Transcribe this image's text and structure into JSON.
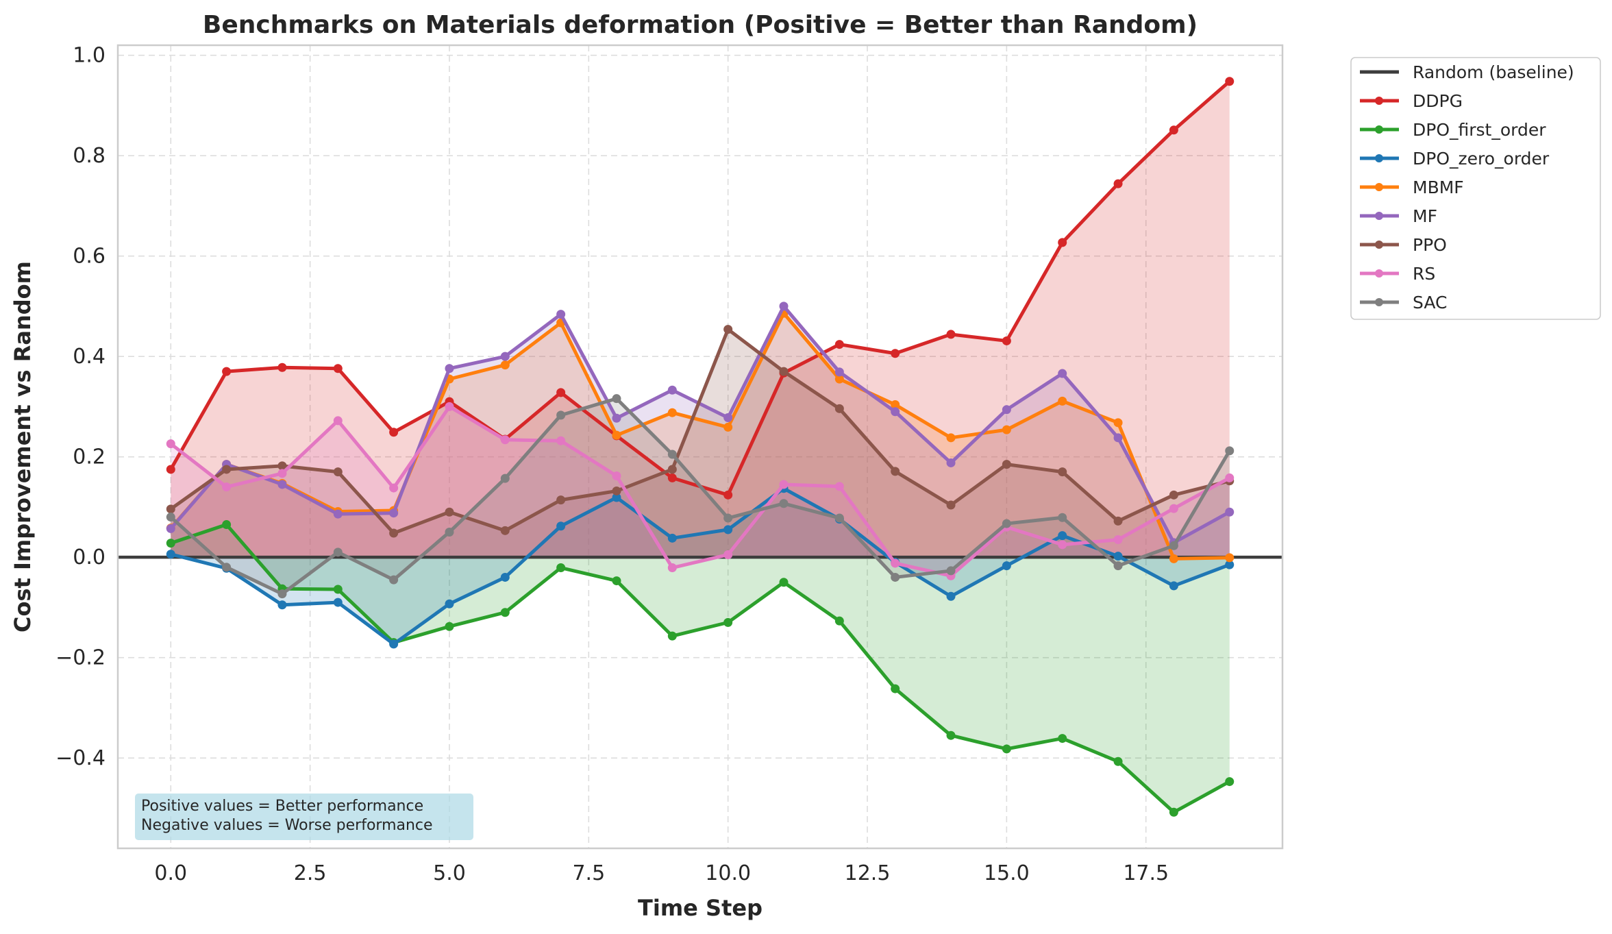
{
  "chart_data": {
    "type": "line",
    "title": "Benchmarks on Materials deformation (Positive = Better than Random)",
    "xlabel": "Time Step",
    "ylabel": "Cost Improvement vs Random",
    "xlim": [
      -0.95,
      19.95
    ],
    "ylim": [
      -0.58,
      1.02
    ],
    "xticks": [
      0.0,
      2.5,
      5.0,
      7.5,
      10.0,
      12.5,
      15.0,
      17.5
    ],
    "xtick_labels": [
      "0.0",
      "2.5",
      "5.0",
      "7.5",
      "10.0",
      "12.5",
      "15.0",
      "17.5"
    ],
    "yticks": [
      -0.4,
      -0.2,
      0.0,
      0.2,
      0.4,
      0.6,
      0.8,
      1.0
    ],
    "ytick_labels": [
      "−0.4",
      "−0.2",
      "0.0",
      "0.2",
      "0.4",
      "0.6",
      "0.8",
      "1.0"
    ],
    "grid": true,
    "legend_position": "outside-top-right",
    "baseline": {
      "name": "Random (baseline)",
      "value": 0.0,
      "color": "#3d3d3d"
    },
    "x": [
      0,
      1,
      2,
      3,
      4,
      5,
      6,
      7,
      8,
      9,
      10,
      11,
      12,
      13,
      14,
      15,
      16,
      17,
      18,
      19
    ],
    "series": [
      {
        "name": "DDPG",
        "color": "#d62728",
        "values": [
          0.175,
          0.37,
          0.378,
          0.376,
          0.249,
          0.31,
          0.235,
          0.328,
          0.242,
          0.158,
          0.124,
          0.367,
          0.424,
          0.406,
          0.444,
          0.431,
          0.627,
          0.744,
          0.851,
          0.948
        ]
      },
      {
        "name": "DPO_first_order",
        "color": "#2ca02c",
        "values": [
          0.028,
          0.065,
          -0.063,
          -0.064,
          -0.17,
          -0.138,
          -0.11,
          -0.021,
          -0.047,
          -0.157,
          -0.13,
          -0.05,
          -0.127,
          -0.262,
          -0.355,
          -0.382,
          -0.361,
          -0.407,
          -0.508,
          -0.447
        ]
      },
      {
        "name": "DPO_zero_order",
        "color": "#1f77b4",
        "values": [
          0.006,
          -0.022,
          -0.095,
          -0.09,
          -0.173,
          -0.093,
          -0.04,
          0.062,
          0.119,
          0.038,
          0.055,
          0.137,
          0.076,
          -0.01,
          -0.078,
          -0.017,
          0.043,
          0.002,
          -0.057,
          -0.015
        ]
      },
      {
        "name": "MBMF",
        "color": "#ff7f0e",
        "values": [
          0.058,
          0.185,
          0.147,
          0.091,
          0.093,
          0.355,
          0.383,
          0.467,
          0.243,
          0.288,
          0.259,
          0.486,
          0.355,
          0.304,
          0.238,
          0.254,
          0.311,
          0.268,
          -0.003,
          -0.001
        ]
      },
      {
        "name": "MF",
        "color": "#9467bd",
        "values": [
          0.057,
          0.185,
          0.145,
          0.086,
          0.088,
          0.376,
          0.4,
          0.484,
          0.277,
          0.333,
          0.278,
          0.5,
          0.369,
          0.29,
          0.188,
          0.294,
          0.366,
          0.238,
          0.029,
          0.09
        ]
      },
      {
        "name": "PPO",
        "color": "#8c564b",
        "values": [
          0.096,
          0.175,
          0.182,
          0.17,
          0.048,
          0.09,
          0.053,
          0.114,
          0.132,
          0.175,
          0.454,
          0.37,
          0.296,
          0.171,
          0.104,
          0.185,
          0.17,
          0.072,
          0.124,
          0.152
        ]
      },
      {
        "name": "RS",
        "color": "#e377c2",
        "values": [
          0.226,
          0.14,
          0.167,
          0.272,
          0.138,
          0.3,
          0.234,
          0.232,
          0.162,
          -0.021,
          0.005,
          0.145,
          0.141,
          -0.012,
          -0.037,
          0.06,
          0.025,
          0.035,
          0.097,
          0.158
        ]
      },
      {
        "name": "SAC",
        "color": "#7f7f7f",
        "values": [
          0.08,
          -0.02,
          -0.073,
          0.01,
          -0.045,
          0.05,
          0.157,
          0.283,
          0.316,
          0.205,
          0.078,
          0.107,
          0.078,
          -0.04,
          -0.027,
          0.067,
          0.079,
          -0.017,
          0.023,
          0.212
        ]
      }
    ],
    "annotation": [
      "Positive values = Better performance",
      "Negative values = Worse performance"
    ]
  }
}
